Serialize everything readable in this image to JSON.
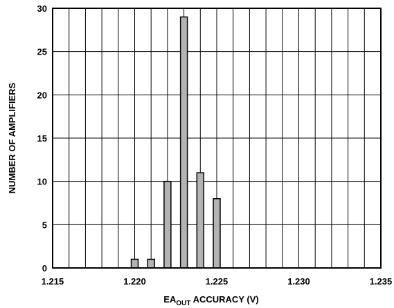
{
  "chart_data": {
    "type": "bar",
    "xlabel_main": "EA",
    "xlabel_sub": "OUT",
    "xlabel_rest": " ACCURACY (V)",
    "ylabel": "NUMBER OF AMPLIFIERS",
    "xlim": [
      1.215,
      1.235
    ],
    "ylim": [
      0,
      30
    ],
    "x_ticks": [
      "1.215",
      "1.220",
      "1.225",
      "1.230",
      "1.235"
    ],
    "y_ticks": [
      "0",
      "5",
      "10",
      "15",
      "20",
      "25",
      "30"
    ],
    "x_grid_step": 0.001,
    "y_grid_step": 5,
    "bar_fill": "#b3b3b3",
    "categories": [
      1.22,
      1.221,
      1.222,
      1.223,
      1.224,
      1.225
    ],
    "values": [
      1,
      1,
      10,
      29,
      11,
      8
    ]
  }
}
